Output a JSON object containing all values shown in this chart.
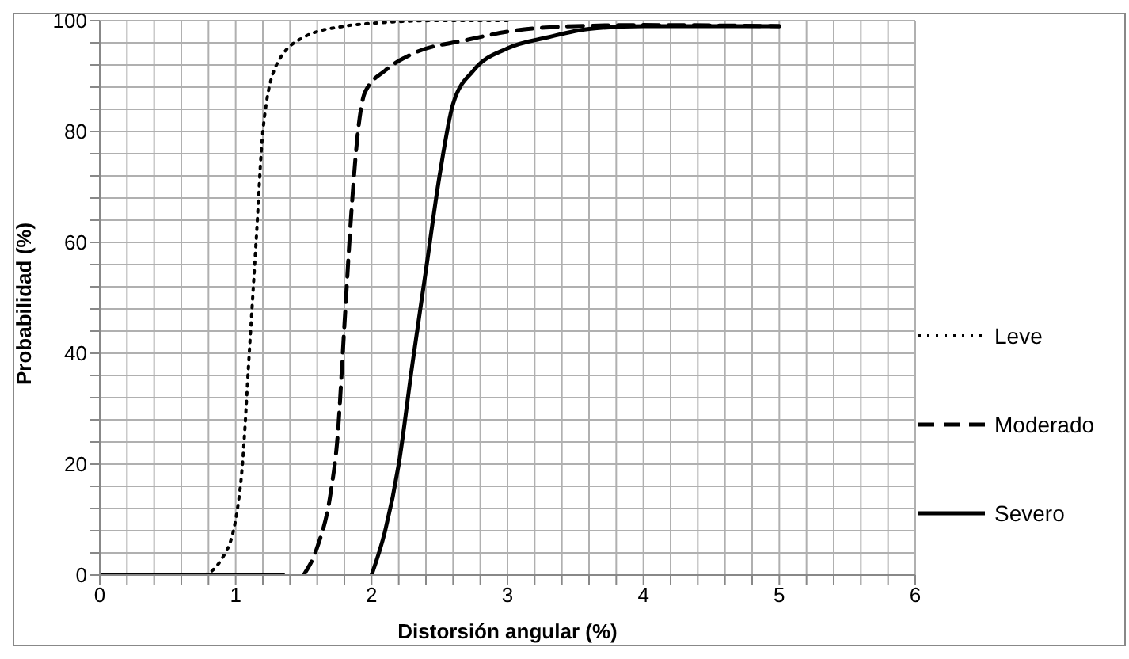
{
  "chart_data": {
    "type": "line",
    "xlabel": "Distorsión angular (%)",
    "ylabel": "Probabilidad (%)",
    "xlim": [
      0,
      6
    ],
    "ylim": [
      0,
      100
    ],
    "xticks": [
      0,
      {
        "value": 0.2,
        "label": null
      },
      {
        "value": 0.4,
        "label": null
      },
      {
        "value": 0.6,
        "label": null
      },
      {
        "value": 0.8,
        "label": null
      },
      1,
      {
        "value": 1.2,
        "label": null
      },
      {
        "value": 1.4,
        "label": null
      },
      {
        "value": 1.6,
        "label": null
      },
      {
        "value": 1.8,
        "label": null
      },
      2,
      {
        "value": 2.2,
        "label": null
      },
      {
        "value": 2.4,
        "label": null
      },
      {
        "value": 2.6,
        "label": null
      },
      {
        "value": 2.8,
        "label": null
      },
      3,
      {
        "value": 3.2,
        "label": null
      },
      {
        "value": 3.4,
        "label": null
      },
      {
        "value": 3.6,
        "label": null
      },
      {
        "value": 3.8,
        "label": null
      },
      4,
      {
        "value": 4.2,
        "label": null
      },
      {
        "value": 4.4,
        "label": null
      },
      {
        "value": 4.6,
        "label": null
      },
      {
        "value": 4.8,
        "label": null
      },
      5,
      {
        "value": 5.2,
        "label": null
      },
      {
        "value": 5.4,
        "label": null
      },
      {
        "value": 5.6,
        "label": null
      },
      {
        "value": 5.8,
        "label": null
      },
      6
    ],
    "yticks": [
      0,
      {
        "value": 4,
        "label": null
      },
      {
        "value": 8,
        "label": null
      },
      {
        "value": 12,
        "label": null
      },
      {
        "value": 16,
        "label": null
      },
      20,
      {
        "value": 24,
        "label": null
      },
      {
        "value": 28,
        "label": null
      },
      {
        "value": 32,
        "label": null
      },
      {
        "value": 36,
        "label": null
      },
      40,
      {
        "value": 44,
        "label": null
      },
      {
        "value": 48,
        "label": null
      },
      {
        "value": 52,
        "label": null
      },
      {
        "value": 56,
        "label": null
      },
      60,
      {
        "value": 64,
        "label": null
      },
      {
        "value": 68,
        "label": null
      },
      {
        "value": 72,
        "label": null
      },
      {
        "value": 76,
        "label": null
      },
      80,
      {
        "value": 84,
        "label": null
      },
      {
        "value": 88,
        "label": null
      },
      {
        "value": 92,
        "label": null
      },
      {
        "value": 96,
        "label": null
      },
      100
    ],
    "grid": true,
    "legend": "right",
    "marker": "none",
    "series": [
      {
        "name": "Leve",
        "color": "#000000",
        "line_style": "dotted",
        "x": [
          0,
          0.75,
          0.9,
          1.0,
          1.05,
          1.1,
          1.15,
          1.2,
          1.3,
          1.5,
          1.8,
          2.0,
          2.5,
          3.0
        ],
        "values": [
          0,
          0,
          3,
          10,
          20,
          40,
          60,
          80,
          92,
          97,
          99,
          99.5,
          100,
          100
        ]
      },
      {
        "name": "Moderado",
        "color": "#000000",
        "line_style": "dashed",
        "x": [
          1.5,
          1.6,
          1.7,
          1.75,
          1.8,
          1.85,
          1.9,
          1.95,
          2.1,
          2.3,
          2.7,
          3.0,
          3.5,
          4.0,
          5.0
        ],
        "values": [
          0,
          5,
          15,
          25,
          45,
          65,
          80,
          87,
          91,
          94,
          96.5,
          98,
          99,
          99.2,
          99
        ]
      },
      {
        "name": "Severo",
        "color": "#000000",
        "line_style": "solid",
        "x": [
          0,
          1.0,
          1.35,
          1.36,
          2.0,
          2.1,
          2.2,
          2.3,
          2.4,
          2.5,
          2.6,
          2.75,
          3.0,
          3.3,
          3.6,
          4.0,
          5.0
        ],
        "values": [
          0,
          0,
          0,
          null,
          0,
          8,
          20,
          38,
          55,
          72,
          85,
          91,
          95,
          97,
          98.5,
          99,
          99
        ]
      }
    ]
  }
}
